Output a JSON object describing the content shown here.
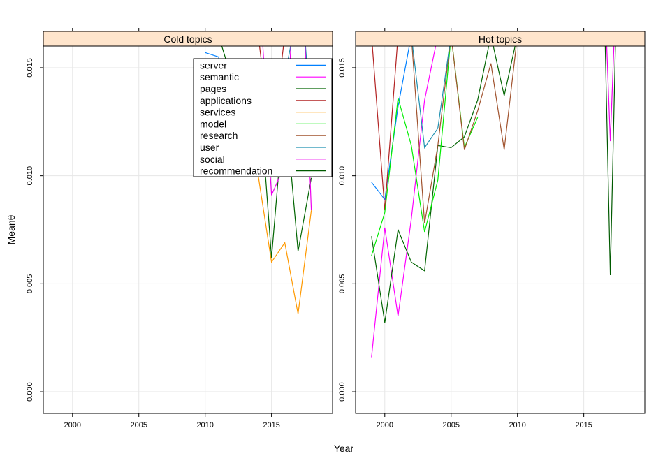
{
  "chart_data": {
    "type": "line",
    "xlabel": "Year",
    "ylabel": "Meanθ",
    "xlim": [
      1997.8,
      2019.6
    ],
    "ylim": [
      -0.001,
      0.016
    ],
    "x_ticks": [
      2000,
      2005,
      2010,
      2015
    ],
    "x_tick_labels": [
      "2000",
      "2005",
      "2010",
      "2015"
    ],
    "y_ticks": [
      0.0,
      0.005,
      0.01,
      0.015
    ],
    "y_tick_labels": [
      "0.000",
      "0.005",
      "0.010",
      "0.015"
    ],
    "grid": true,
    "legend": {
      "panel": 0,
      "placement": "top-right",
      "entries": [
        {
          "name": "server",
          "color": "#0080ff"
        },
        {
          "name": "semantic",
          "color": "#ff00ff"
        },
        {
          "name": "pages",
          "color": "#006400"
        },
        {
          "name": "applications",
          "color": "#b22222"
        },
        {
          "name": "services",
          "color": "#ff9900"
        },
        {
          "name": "model",
          "color": "#00ee00"
        },
        {
          "name": "research",
          "color": "#a0522d"
        },
        {
          "name": "user",
          "color": "#1e90b0"
        },
        {
          "name": "social",
          "color": "#ee00ee"
        },
        {
          "name": "recommendation",
          "color": "#005a00"
        }
      ]
    },
    "panels": [
      {
        "title": "Cold topics",
        "series": [
          {
            "name": "server",
            "color": "#0080ff",
            "x": [
              2010,
              2011,
              2012
            ],
            "y": [
              0.0157,
              0.0155,
              0.0135
            ]
          },
          {
            "name": "pages",
            "color": "#006400",
            "x": [
              2011,
              2012,
              2013,
              2014,
              2015,
              2016,
              2017,
              2018
            ],
            "y": [
              0.0165,
              0.0145,
              0.0128,
              0.0146,
              0.0062,
              0.0135,
              0.0065,
              0.0099
            ]
          },
          {
            "name": "applications",
            "color": "#b22222",
            "x": [
              2014,
              2015,
              2016
            ],
            "y": [
              0.0165,
              0.0114,
              0.0165
            ]
          },
          {
            "name": "services",
            "color": "#ff9900",
            "x": [
              2013,
              2014,
              2015,
              2016,
              2017,
              2018
            ],
            "y": [
              0.0128,
              0.01,
              0.006,
              0.0069,
              0.0036,
              0.0084
            ]
          },
          {
            "name": "user",
            "color": "#1e90b0",
            "x": [
              2012,
              2013,
              2014,
              2015,
              2016,
              2016.6,
              2017.5,
              2018
            ],
            "y": [
              0.0118,
              0.0115,
              0.0128,
              0.0132,
              0.0146,
              0.0165,
              0.0165,
              0.0125
            ]
          },
          {
            "name": "social",
            "color": "#ee00ee",
            "x": [
              2014.3,
              2015,
              2016,
              2016.5,
              2017.5,
              2018
            ],
            "y": [
              0.0165,
              0.0091,
              0.0105,
              0.0165,
              0.0165,
              0.0084
            ]
          }
        ]
      },
      {
        "title": "Hot topics",
        "series": [
          {
            "name": "server",
            "color": "#0080ff",
            "x": [
              1999,
              2000,
              2001,
              2002
            ],
            "y": [
              0.0097,
              0.0089,
              0.0132,
              0.0165
            ]
          },
          {
            "name": "semantic",
            "color": "#ff00ff",
            "x": [
              1999,
              2000,
              2001,
              2002,
              2003,
              2004
            ],
            "y": [
              0.0016,
              0.0076,
              0.0035,
              0.008,
              0.0135,
              0.0165
            ]
          },
          {
            "name": "pages",
            "color": "#006400",
            "x": [
              1999,
              2000,
              2001,
              2002,
              2003,
              2004,
              2005,
              2006,
              2007,
              2008,
              2009,
              2010
            ],
            "y": [
              0.0072,
              0.0032,
              0.0075,
              0.006,
              0.0056,
              0.0114,
              0.0113,
              0.0118,
              0.0135,
              0.0165,
              0.0137,
              0.0165
            ]
          },
          {
            "name": "applications",
            "color": "#b22222",
            "x": [
              1999,
              2000,
              2001
            ],
            "y": [
              0.0165,
              0.0084,
              0.0165
            ]
          },
          {
            "name": "model",
            "color": "#00ee00",
            "x": [
              1999,
              2000,
              2001,
              2002,
              2003,
              2004,
              2005,
              2006,
              2007
            ],
            "y": [
              0.0063,
              0.0083,
              0.0136,
              0.0114,
              0.0074,
              0.0098,
              0.0165,
              0.0113,
              0.0127
            ]
          },
          {
            "name": "research",
            "color": "#a0522d",
            "x": [
              2002,
              2003,
              2004,
              2005,
              2006,
              2007,
              2008,
              2009,
              2010
            ],
            "y": [
              0.0165,
              0.0078,
              0.0114,
              0.0165,
              0.0112,
              0.013,
              0.0152,
              0.0112,
              0.0165
            ]
          },
          {
            "name": "user",
            "color": "#1e90b0",
            "x": [
              2002,
              2003,
              2004,
              2005
            ],
            "y": [
              0.0165,
              0.0113,
              0.0122,
              0.0165
            ]
          },
          {
            "name": "recommendation",
            "color": "#005a00",
            "x": [
              2016.6,
              2017,
              2017.4
            ],
            "y": [
              0.0165,
              0.0054,
              0.0165
            ]
          },
          {
            "name": "social",
            "color": "#ee00ee",
            "x": [
              2016.7,
              2017,
              2017.3
            ],
            "y": [
              0.0165,
              0.0116,
              0.0165
            ]
          }
        ]
      }
    ]
  }
}
